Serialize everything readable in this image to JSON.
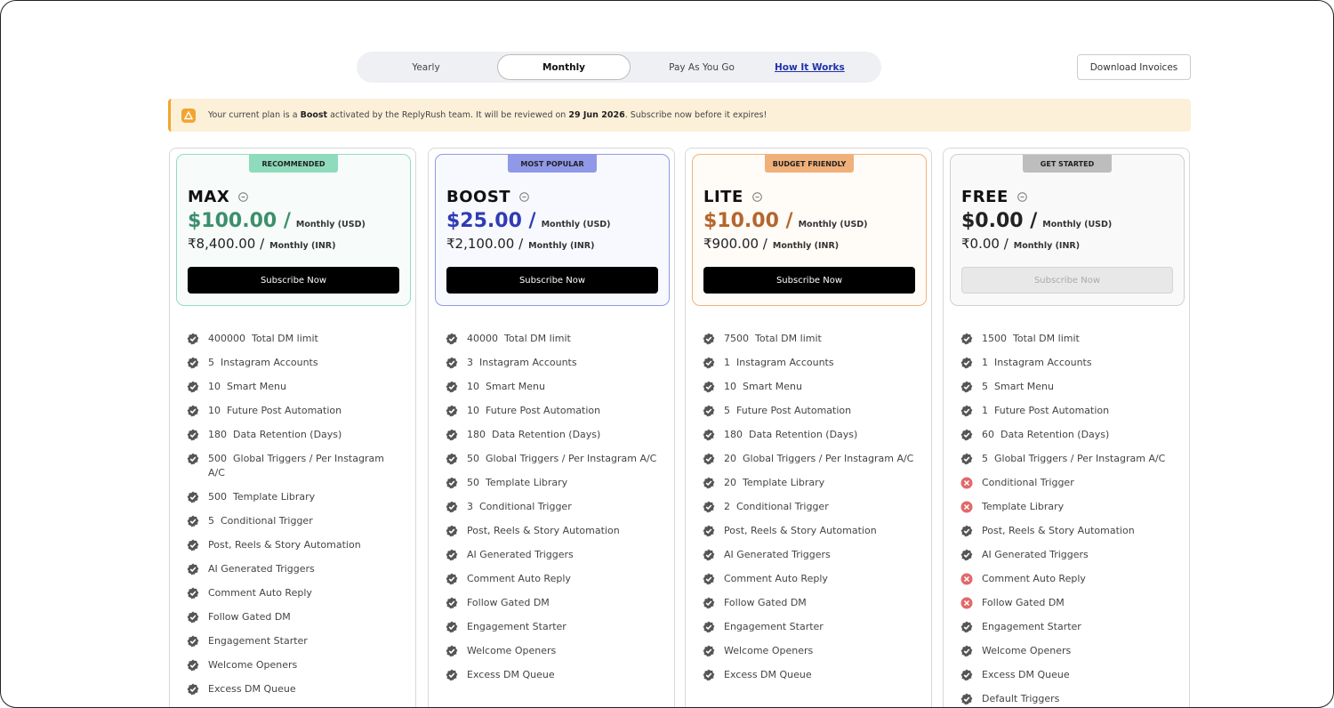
{
  "tabs": {
    "items": [
      "Yearly",
      "Monthly",
      "Pay As You Go"
    ],
    "selected": 1,
    "link": "How It Works"
  },
  "download_button": "Download Invoices",
  "banner": {
    "parts": [
      {
        "text": "Your current plan is a ",
        "bold": false
      },
      {
        "text": "Boost",
        "bold": true
      },
      {
        "text": " activated by the ReplyRush team. It will be reviewed on ",
        "bold": false
      },
      {
        "text": "29 Jun 2026",
        "bold": true
      },
      {
        "text": ". Subscribe now before it expires!",
        "bold": false
      }
    ]
  },
  "plans": [
    {
      "badge": "RECOMMENDED",
      "name": "MAX",
      "price_usd": "$100.00 /",
      "period_usd": "Monthly (USD)",
      "price_inr": "₹8,400.00 /",
      "period_inr": "Monthly (INR)",
      "button": "Subscribe Now",
      "color": "#3c8f6c",
      "border": "#93dcc1",
      "badge_color": "#8fdcbd",
      "bg": "#f7fbf9",
      "disabled": false,
      "features": [
        {
          "count": 400000,
          "label": "Total DM limit",
          "included": true
        },
        {
          "count": 5,
          "label": "Instagram Accounts",
          "included": true
        },
        {
          "count": 10,
          "label": "Smart Menu",
          "included": true
        },
        {
          "count": 10,
          "label": "Future Post Automation",
          "included": true
        },
        {
          "count": 180,
          "label": "Data Retention (Days)",
          "included": true
        },
        {
          "count": 500,
          "label": "Global Triggers / Per Instagram A/C",
          "included": true
        },
        {
          "count": 500,
          "label": "Template Library",
          "included": true
        },
        {
          "count": 5,
          "label": "Conditional Trigger",
          "included": true
        },
        {
          "label": "Post, Reels & Story Automation",
          "included": true
        },
        {
          "label": "AI Generated Triggers",
          "included": true
        },
        {
          "label": "Comment Auto Reply",
          "included": true
        },
        {
          "label": "Follow Gated DM",
          "included": true
        },
        {
          "label": "Engagement Starter",
          "included": true
        },
        {
          "label": "Welcome Openers",
          "included": true
        },
        {
          "label": "Excess DM Queue",
          "included": true
        }
      ]
    },
    {
      "badge": "MOST POPULAR",
      "name": "BOOST",
      "price_usd": "$25.00 /",
      "period_usd": "Monthly (USD)",
      "price_inr": "₹2,100.00 /",
      "period_inr": "Monthly (INR)",
      "button": "Subscribe Now",
      "color": "#2f3cb3",
      "border": "#9099e6",
      "badge_color": "#8f99e8",
      "bg": "#f8f9fe",
      "disabled": false,
      "features": [
        {
          "count": 40000,
          "label": "Total DM limit",
          "included": true
        },
        {
          "count": 3,
          "label": "Instagram Accounts",
          "included": true
        },
        {
          "count": 10,
          "label": "Smart Menu",
          "included": true
        },
        {
          "count": 10,
          "label": "Future Post Automation",
          "included": true
        },
        {
          "count": 180,
          "label": "Data Retention (Days)",
          "included": true
        },
        {
          "count": 50,
          "label": "Global Triggers / Per Instagram A/C",
          "included": true
        },
        {
          "count": 50,
          "label": "Template Library",
          "included": true
        },
        {
          "count": 3,
          "label": "Conditional Trigger",
          "included": true
        },
        {
          "label": "Post, Reels & Story Automation",
          "included": true
        },
        {
          "label": "AI Generated Triggers",
          "included": true
        },
        {
          "label": "Comment Auto Reply",
          "included": true
        },
        {
          "label": "Follow Gated DM",
          "included": true
        },
        {
          "label": "Engagement Starter",
          "included": true
        },
        {
          "label": "Welcome Openers",
          "included": true
        },
        {
          "label": "Excess DM Queue",
          "included": true
        }
      ]
    },
    {
      "badge": "BUDGET FRIENDLY",
      "name": "LITE",
      "price_usd": "$10.00 /",
      "period_usd": "Monthly (USD)",
      "price_inr": "₹900.00 /",
      "period_inr": "Monthly (INR)",
      "button": "Subscribe Now",
      "color": "#b4662c",
      "border": "#f0b37c",
      "badge_color": "#f0b07a",
      "bg": "#fffbf7",
      "disabled": false,
      "features": [
        {
          "count": 7500,
          "label": "Total DM limit",
          "included": true
        },
        {
          "count": 1,
          "label": "Instagram Accounts",
          "included": true
        },
        {
          "count": 10,
          "label": "Smart Menu",
          "included": true
        },
        {
          "count": 5,
          "label": "Future Post Automation",
          "included": true
        },
        {
          "count": 180,
          "label": "Data Retention (Days)",
          "included": true
        },
        {
          "count": 20,
          "label": "Global Triggers / Per Instagram A/C",
          "included": true
        },
        {
          "count": 20,
          "label": "Template Library",
          "included": true
        },
        {
          "count": 2,
          "label": "Conditional Trigger",
          "included": true
        },
        {
          "label": "Post, Reels & Story Automation",
          "included": true
        },
        {
          "label": "AI Generated Triggers",
          "included": true
        },
        {
          "label": "Comment Auto Reply",
          "included": true
        },
        {
          "label": "Follow Gated DM",
          "included": true
        },
        {
          "label": "Engagement Starter",
          "included": true
        },
        {
          "label": "Welcome Openers",
          "included": true
        },
        {
          "label": "Excess DM Queue",
          "included": true
        }
      ]
    },
    {
      "badge": "GET STARTED",
      "name": "FREE",
      "price_usd": "$0.00 /",
      "period_usd": "Monthly (USD)",
      "price_inr": "₹0.00 /",
      "period_inr": "Monthly (INR)",
      "button": "Subscribe Now",
      "color": "#222222",
      "border": "#cfcfcf",
      "badge_color": "#bdbdbd",
      "bg": "#f9f9f9",
      "disabled": true,
      "features": [
        {
          "count": 1500,
          "label": "Total DM limit",
          "included": true
        },
        {
          "count": 1,
          "label": "Instagram Accounts",
          "included": true
        },
        {
          "count": 5,
          "label": "Smart Menu",
          "included": true
        },
        {
          "count": 1,
          "label": "Future Post Automation",
          "included": true
        },
        {
          "count": 60,
          "label": "Data Retention (Days)",
          "included": true
        },
        {
          "count": 5,
          "label": "Global Triggers / Per Instagram A/C",
          "included": true
        },
        {
          "label": "Conditional Trigger",
          "included": false
        },
        {
          "label": "Template Library",
          "included": false
        },
        {
          "label": "Post, Reels & Story Automation",
          "included": true
        },
        {
          "label": "AI Generated Triggers",
          "included": true
        },
        {
          "label": "Comment Auto Reply",
          "included": false
        },
        {
          "label": "Follow Gated DM",
          "included": false
        },
        {
          "label": "Engagement Starter",
          "included": true
        },
        {
          "label": "Welcome Openers",
          "included": true
        },
        {
          "label": "Excess DM Queue",
          "included": true
        },
        {
          "label": "Default Triggers",
          "included": true
        }
      ]
    }
  ]
}
